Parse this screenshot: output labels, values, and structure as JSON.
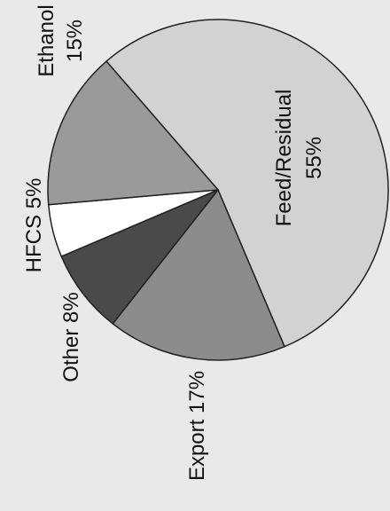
{
  "chart_data": {
    "type": "pie",
    "title": "",
    "slices": [
      {
        "label": "Feed/Residual",
        "value": 55,
        "value_label": "55%",
        "color": "#d2d2d2"
      },
      {
        "label": "Export",
        "value": 17,
        "value_label": "17%",
        "color": "#8c8c8c"
      },
      {
        "label": "Other",
        "value": 8,
        "value_label": "8%",
        "color": "#4a4a4a"
      },
      {
        "label": "HFCS",
        "value": 5,
        "value_label": "5%",
        "color": "#ffffff"
      },
      {
        "label": "Ethanol",
        "value": 15,
        "value_label": "15%",
        "color": "#9a9a9a"
      }
    ],
    "legend": "none",
    "orientation": "rotated 90 degrees clockwise"
  }
}
